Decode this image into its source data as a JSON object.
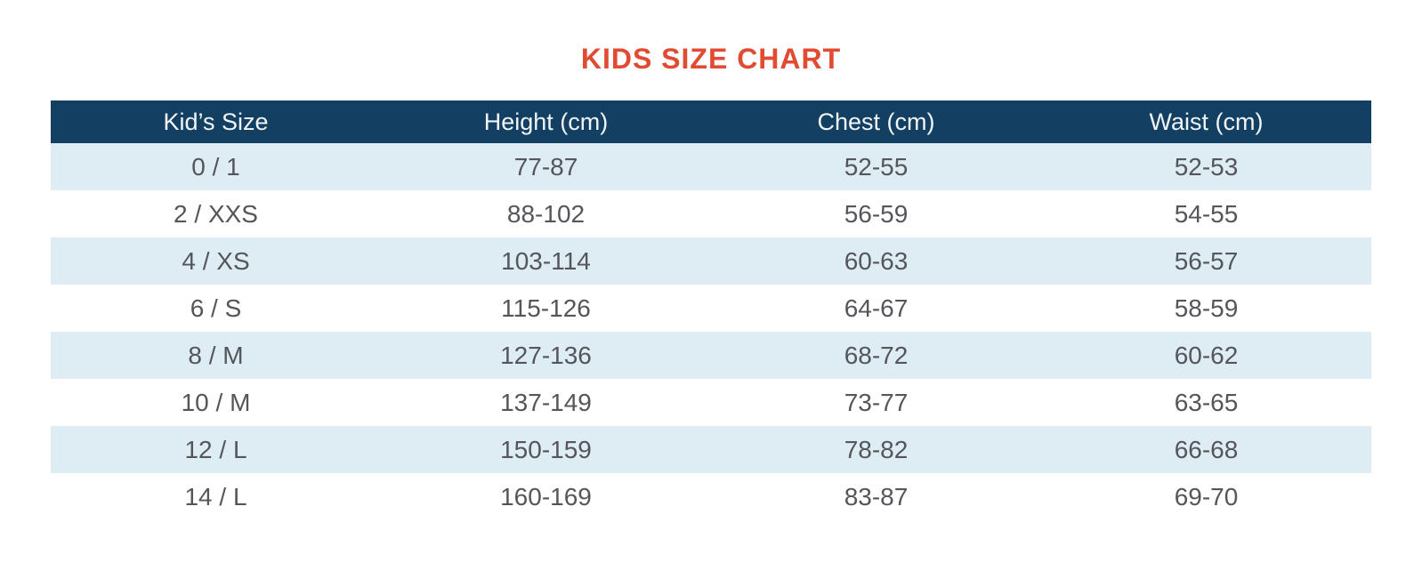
{
  "page": {
    "title": "KIDS SIZE CHART"
  },
  "theme": {
    "accent": "#E04B32",
    "header_bg": "#123F62",
    "header_text": "#F2F5F6",
    "row_alt_bg": "#DDEDF3",
    "row_bg": "#FFFFFF",
    "body_text": "#55565B",
    "bottom_divider": "#EBEEF0"
  },
  "table": {
    "columns": [
      "Kid’s Size",
      "Height (cm)",
      "Chest (cm)",
      "Waist (cm)"
    ],
    "rows": [
      [
        "0 / 1",
        "77-87",
        "52-55",
        "52-53"
      ],
      [
        "2 / XXS",
        "88-102",
        "56-59",
        "54-55"
      ],
      [
        "4 / XS",
        "103-114",
        "60-63",
        "56-57"
      ],
      [
        "6 / S",
        "115-126",
        "64-67",
        "58-59"
      ],
      [
        "8 / M",
        "127-136",
        "68-72",
        "60-62"
      ],
      [
        "10 / M",
        "137-149",
        "73-77",
        "63-65"
      ],
      [
        "12 / L",
        "150-159",
        "78-82",
        "66-68"
      ],
      [
        "14 / L",
        "160-169",
        "83-87",
        "69-70"
      ]
    ]
  },
  "chart_data": {
    "type": "table",
    "title": "KIDS SIZE CHART",
    "columns": [
      "Kid’s Size",
      "Height (cm)",
      "Chest (cm)",
      "Waist (cm)"
    ],
    "rows": [
      [
        "0 / 1",
        "77-87",
        "52-55",
        "52-53"
      ],
      [
        "2 / XXS",
        "88-102",
        "56-59",
        "54-55"
      ],
      [
        "4 / XS",
        "103-114",
        "60-63",
        "56-57"
      ],
      [
        "6 / S",
        "115-126",
        "64-67",
        "58-59"
      ],
      [
        "8 / M",
        "127-136",
        "68-72",
        "60-62"
      ],
      [
        "10 / M",
        "137-149",
        "73-77",
        "63-65"
      ],
      [
        "12 / L",
        "150-159",
        "78-82",
        "66-68"
      ],
      [
        "14 / L",
        "160-169",
        "83-87",
        "69-70"
      ]
    ],
    "layout": {
      "alternating_row_shading": true,
      "header_style": "solid navy band with white text",
      "alignment": "center"
    }
  }
}
